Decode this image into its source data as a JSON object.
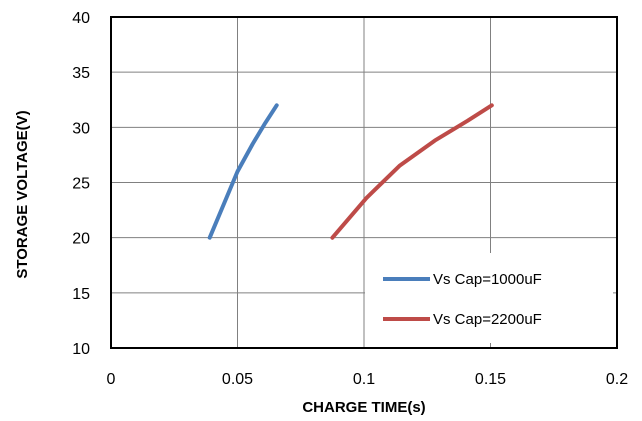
{
  "chart_data": {
    "type": "line",
    "title": "",
    "xlabel": "CHARGE TIME(s)",
    "ylabel": "STORAGE VOLTAGE(V)",
    "xlim": [
      0,
      0.2
    ],
    "ylim": [
      10,
      40
    ],
    "xticks": [
      0,
      0.05,
      0.1,
      0.15,
      0.2
    ],
    "xtick_labels": [
      "0",
      "0.05",
      "0.1",
      "0.15",
      "0.2"
    ],
    "yticks": [
      10,
      15,
      20,
      25,
      30,
      35,
      40
    ],
    "ytick_labels": [
      "10",
      "15",
      "20",
      "25",
      "30",
      "35",
      "40"
    ],
    "grid": true,
    "legend_position": "bottom-right",
    "series": [
      {
        "name": "Vs Cap=1000uF",
        "color": "#4a7ebb",
        "x": [
          0.039,
          0.0445,
          0.05,
          0.056,
          0.061,
          0.0655
        ],
        "y": [
          20,
          23,
          26,
          28.5,
          30.4,
          32
        ]
      },
      {
        "name": "Vs Cap=2200uF",
        "color": "#be4b48",
        "x": [
          0.0875,
          0.101,
          0.114,
          0.128,
          0.141,
          0.1505
        ],
        "y": [
          20,
          23.6,
          26.5,
          28.8,
          30.6,
          32
        ]
      }
    ]
  }
}
